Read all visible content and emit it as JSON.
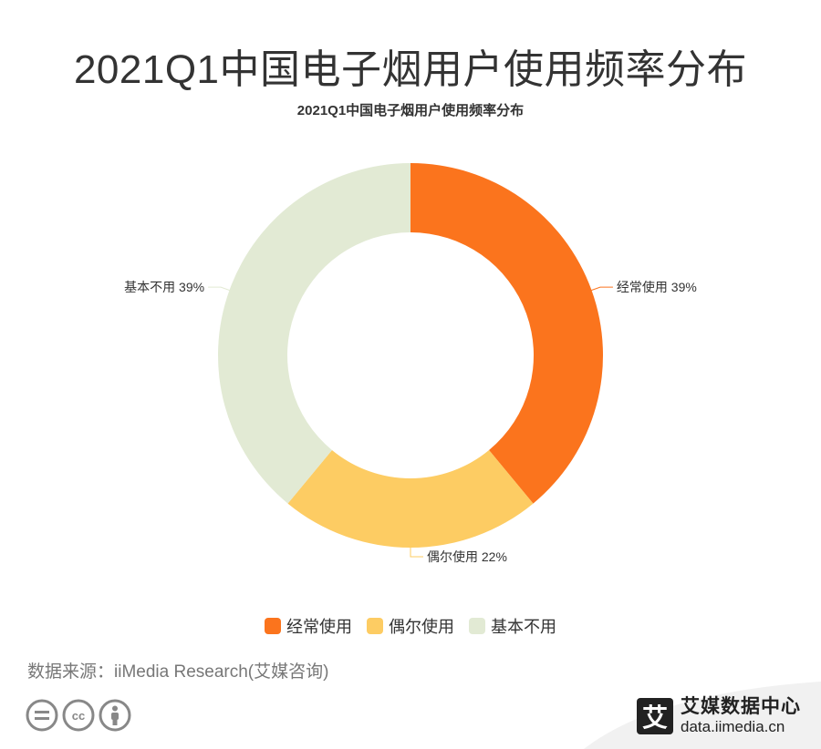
{
  "header": {
    "title": "2021Q1中国电子烟用户使用频率分布"
  },
  "chart_data": {
    "type": "pie",
    "title": "2021Q1中国电子烟用户使用频率分布",
    "categories": [
      "经常使用",
      "偶尔使用",
      "基本不用"
    ],
    "values": [
      39,
      22,
      39
    ],
    "unit": "%",
    "data_labels": [
      "经常使用 39%",
      "偶尔使用 22%",
      "基本不用 39%"
    ],
    "colors": [
      "#fb741d",
      "#fdcc63",
      "#e2ead4"
    ],
    "legend_position": "bottom"
  },
  "footer": {
    "source": "数据来源：iiMedia Research(艾媒咨询)",
    "brand_logo_char": "艾",
    "brand_name": "艾媒数据中心",
    "brand_url": "data.iimedia.cn",
    "cc_icons": [
      "equals-icon",
      "cc-icon",
      "person-icon"
    ]
  }
}
